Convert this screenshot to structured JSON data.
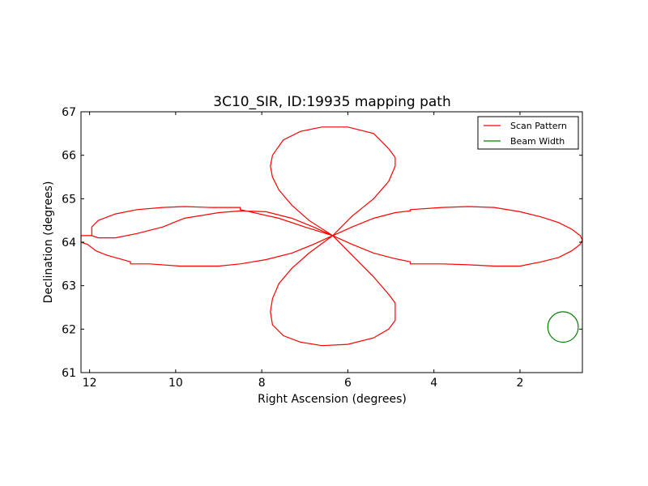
{
  "chart_data": {
    "type": "line",
    "title": "3C10_SIR, ID:19935 mapping path",
    "xlabel": "Right Ascension (degrees)",
    "ylabel": "Declination (degrees)",
    "xlim": [
      12.2,
      0.55
    ],
    "ylim": [
      61,
      67
    ],
    "x_inverted": true,
    "xticks": [
      12,
      10,
      8,
      6,
      4,
      2
    ],
    "yticks": [
      61,
      62,
      63,
      64,
      65,
      66,
      67
    ],
    "grid": false,
    "legend_position": "top-right",
    "series": [
      {
        "name": "Scan Pattern",
        "color": "#ff0000",
        "kind": "line",
        "x": [
          6.35,
          7.0,
          7.6,
          8.5,
          8.5,
          9.2,
          9.8,
          10.3,
          10.9,
          11.4,
          11.8,
          11.95,
          11.95,
          12.2,
          12.2,
          12.05,
          11.85,
          11.6,
          11.05,
          11.05,
          10.6,
          9.9,
          9.0,
          8.5,
          7.9,
          7.3,
          6.8,
          6.35,
          5.9,
          5.4,
          4.9,
          4.55,
          4.55,
          3.8,
          3.2,
          2.6,
          2.0,
          1.5,
          1.1,
          0.8,
          0.6,
          0.55,
          0.6,
          0.8,
          1.1,
          1.5,
          2.0,
          2.6,
          3.2,
          3.8,
          4.55,
          4.55,
          4.9,
          5.4,
          5.9,
          6.35,
          6.8,
          7.3,
          7.9,
          8.5,
          8.5,
          9.0,
          9.8,
          10.3,
          10.9,
          11.4,
          11.8,
          11.95,
          11.95,
          12.2,
          12.2,
          12.05,
          11.85,
          11.6,
          11.05,
          11.05,
          10.6,
          9.9,
          9.0,
          8.5,
          7.9,
          7.3,
          6.8,
          6.35,
          5.9,
          5.4,
          5.05,
          4.9,
          4.9,
          5.05,
          5.4,
          6.0,
          6.6,
          7.1,
          7.5,
          7.75,
          7.8,
          7.75,
          7.6,
          7.3,
          6.9,
          6.35
        ],
        "y": [
          64.15,
          64.35,
          64.55,
          64.75,
          64.8,
          64.8,
          64.82,
          64.8,
          64.75,
          64.65,
          64.5,
          64.35,
          64.15,
          64.15,
          64.0,
          63.95,
          63.8,
          63.7,
          63.55,
          63.5,
          63.5,
          63.45,
          63.45,
          63.5,
          63.6,
          63.75,
          63.95,
          64.15,
          64.35,
          64.55,
          64.68,
          64.72,
          64.75,
          64.8,
          64.82,
          64.8,
          64.7,
          64.58,
          64.45,
          64.3,
          64.15,
          64.05,
          63.95,
          63.8,
          63.65,
          63.55,
          63.45,
          63.45,
          63.48,
          63.5,
          63.5,
          63.55,
          63.62,
          63.75,
          63.95,
          64.15,
          64.35,
          64.55,
          64.7,
          64.72,
          64.72,
          64.68,
          64.55,
          64.35,
          64.2,
          64.1,
          64.1,
          64.15,
          64.15,
          64.15,
          64.0,
          63.95,
          63.8,
          63.7,
          63.55,
          63.5,
          63.5,
          63.45,
          63.45,
          63.5,
          63.6,
          63.75,
          63.95,
          64.15,
          63.7,
          63.2,
          62.8,
          62.6,
          62.2,
          62.0,
          61.8,
          61.65,
          61.62,
          61.7,
          61.85,
          62.1,
          62.4,
          62.7,
          63.05,
          63.4,
          63.75,
          64.15
        ]
      },
      {
        "name": "Beam Width",
        "color": "#008000",
        "kind": "circle",
        "center": [
          1.0,
          62.05
        ],
        "radius_deg": 0.35
      }
    ],
    "extra_loops": {
      "upper_loop": {
        "x": [
          6.35,
          5.9,
          5.4,
          5.05,
          4.9,
          4.9,
          5.05,
          5.4,
          6.0,
          6.6,
          7.1,
          7.5,
          7.75,
          7.8,
          7.75,
          7.6,
          7.3,
          6.9,
          6.35
        ],
        "y": [
          64.15,
          64.6,
          65.0,
          65.4,
          65.75,
          65.95,
          66.15,
          66.5,
          66.65,
          66.65,
          66.55,
          66.35,
          66.0,
          65.75,
          65.5,
          65.2,
          64.85,
          64.5,
          64.15
        ]
      }
    }
  },
  "legend": {
    "items": [
      {
        "label": "Scan Pattern",
        "color": "#ff0000"
      },
      {
        "label": "Beam Width",
        "color": "#008000"
      }
    ]
  }
}
